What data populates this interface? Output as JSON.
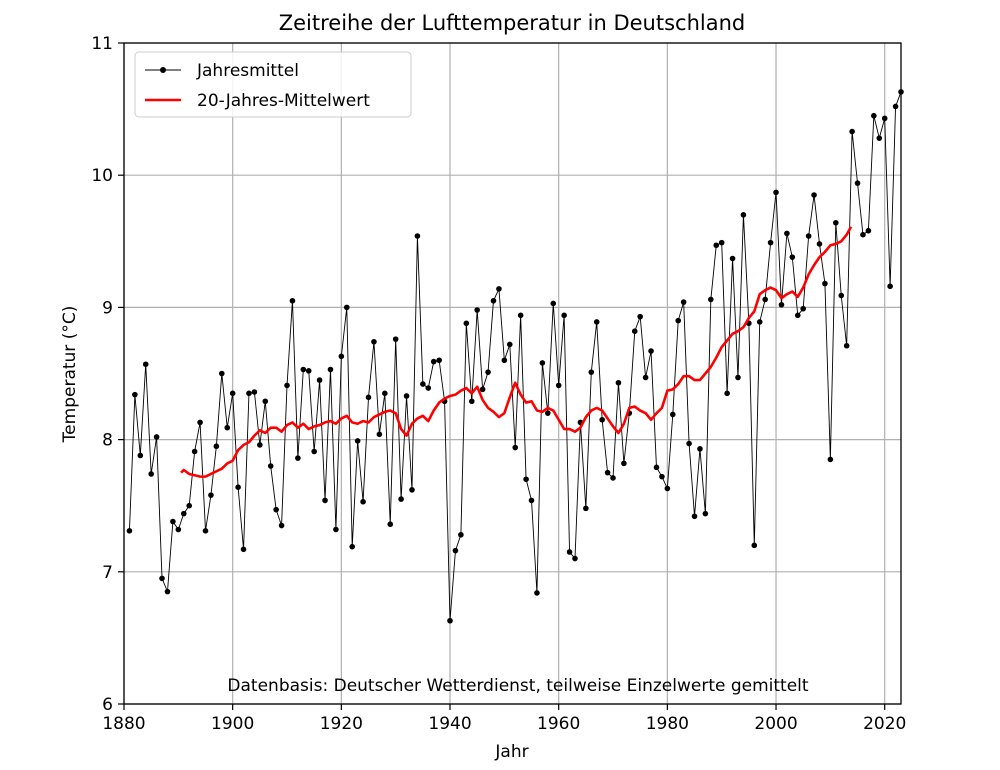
{
  "chart_data": {
    "type": "line",
    "title": "Zeitreihe der Lufttemperatur in Deutschland",
    "xlabel": "Jahr",
    "ylabel": "Temperatur (°C)",
    "xlim": [
      1880,
      2023
    ],
    "ylim": [
      6,
      11
    ],
    "xticks": [
      1880,
      1900,
      1920,
      1940,
      1960,
      1980,
      2000,
      2020
    ],
    "yticks": [
      6,
      7,
      8,
      9,
      10,
      11
    ],
    "grid": true,
    "legend_position": "top-left",
    "annotation": "Datenbasis: Deutscher Wetterdienst, teilweise Einzelwerte gemittelt",
    "series": [
      {
        "name": "Jahresmittel",
        "color": "#000000",
        "marker": "dot",
        "x": [
          1881,
          1882,
          1883,
          1884,
          1885,
          1886,
          1887,
          1888,
          1889,
          1890,
          1891,
          1892,
          1893,
          1894,
          1895,
          1896,
          1897,
          1898,
          1899,
          1900,
          1901,
          1902,
          1903,
          1904,
          1905,
          1906,
          1907,
          1908,
          1909,
          1910,
          1911,
          1912,
          1913,
          1914,
          1915,
          1916,
          1917,
          1918,
          1919,
          1920,
          1921,
          1922,
          1923,
          1924,
          1925,
          1926,
          1927,
          1928,
          1929,
          1930,
          1931,
          1932,
          1933,
          1934,
          1935,
          1936,
          1937,
          1938,
          1939,
          1940,
          1941,
          1942,
          1943,
          1944,
          1945,
          1946,
          1947,
          1948,
          1949,
          1950,
          1951,
          1952,
          1953,
          1954,
          1955,
          1956,
          1957,
          1958,
          1959,
          1960,
          1961,
          1962,
          1963,
          1964,
          1965,
          1966,
          1967,
          1968,
          1969,
          1970,
          1971,
          1972,
          1973,
          1974,
          1975,
          1976,
          1977,
          1978,
          1979,
          1980,
          1981,
          1982,
          1983,
          1984,
          1985,
          1986,
          1987,
          1988,
          1989,
          1990,
          1991,
          1992,
          1993,
          1994,
          1995,
          1996,
          1997,
          1998,
          1999,
          2000,
          2001,
          2002,
          2003,
          2004,
          2005,
          2006,
          2007,
          2008,
          2009,
          2010,
          2011,
          2012,
          2013,
          2014,
          2015,
          2016,
          2017,
          2018,
          2019,
          2020,
          2021,
          2022,
          2023
        ],
        "values": [
          7.31,
          8.34,
          7.88,
          8.57,
          7.74,
          8.02,
          6.95,
          6.85,
          7.38,
          7.32,
          7.44,
          7.5,
          7.91,
          8.13,
          7.31,
          7.58,
          7.95,
          8.5,
          8.09,
          8.35,
          7.64,
          7.17,
          8.35,
          8.36,
          7.96,
          8.29,
          7.8,
          7.47,
          7.35,
          8.41,
          9.05,
          7.86,
          8.53,
          8.52,
          7.91,
          8.45,
          7.54,
          8.53,
          7.32,
          8.63,
          9.0,
          7.19,
          7.99,
          7.53,
          8.32,
          8.74,
          8.04,
          8.35,
          7.36,
          8.76,
          7.55,
          8.33,
          7.62,
          9.54,
          8.42,
          8.39,
          8.59,
          8.6,
          8.29,
          6.63,
          7.16,
          7.28,
          8.88,
          8.29,
          8.98,
          8.38,
          8.51,
          9.05,
          9.14,
          8.6,
          8.72,
          7.94,
          8.94,
          7.7,
          7.54,
          6.84,
          8.58,
          8.2,
          9.03,
          8.41,
          8.94,
          7.15,
          7.1,
          8.13,
          7.48,
          8.51,
          8.89,
          8.15,
          7.75,
          7.71,
          8.43,
          7.82,
          8.2,
          8.82,
          8.93,
          8.47,
          8.67,
          7.79,
          7.72,
          7.63,
          8.19,
          8.9,
          9.04,
          7.97,
          7.42,
          7.93,
          7.44,
          9.06,
          9.47,
          9.49,
          8.35,
          9.37,
          8.47,
          9.7,
          8.88,
          7.2,
          8.89,
          9.06,
          9.49,
          9.87,
          9.02,
          9.56,
          9.38,
          8.94,
          8.99,
          9.54,
          9.85,
          9.48,
          9.18,
          7.85,
          9.64,
          9.09,
          8.71,
          10.33,
          9.94,
          9.55,
          9.58,
          10.45,
          10.28,
          10.43,
          9.16,
          10.52,
          10.63
        ]
      },
      {
        "name": "20-Jahres-Mittelwert",
        "color": "#ff0000",
        "points": [
          [
            1890.5,
            7.75
          ],
          [
            1891,
            7.77
          ],
          [
            1892,
            7.74
          ],
          [
            1893,
            7.73
          ],
          [
            1894,
            7.72
          ],
          [
            1895,
            7.72
          ],
          [
            1896,
            7.74
          ],
          [
            1897,
            7.76
          ],
          [
            1898,
            7.78
          ],
          [
            1899,
            7.82
          ],
          [
            1900,
            7.84
          ],
          [
            1901,
            7.92
          ],
          [
            1902,
            7.96
          ],
          [
            1903,
            7.98
          ],
          [
            1904,
            8.03
          ],
          [
            1905,
            8.07
          ],
          [
            1906,
            8.05
          ],
          [
            1907,
            8.09
          ],
          [
            1908,
            8.09
          ],
          [
            1909,
            8.06
          ],
          [
            1910,
            8.11
          ],
          [
            1911,
            8.13
          ],
          [
            1912,
            8.09
          ],
          [
            1913,
            8.12
          ],
          [
            1914,
            8.08
          ],
          [
            1915,
            8.1
          ],
          [
            1916,
            8.11
          ],
          [
            1917,
            8.13
          ],
          [
            1918,
            8.14
          ],
          [
            1919,
            8.12
          ],
          [
            1920,
            8.16
          ],
          [
            1921,
            8.18
          ],
          [
            1922,
            8.13
          ],
          [
            1923,
            8.12
          ],
          [
            1924,
            8.14
          ],
          [
            1925,
            8.13
          ],
          [
            1926,
            8.17
          ],
          [
            1927,
            8.19
          ],
          [
            1928,
            8.21
          ],
          [
            1929,
            8.22
          ],
          [
            1930,
            8.2
          ],
          [
            1931,
            8.08
          ],
          [
            1932,
            8.03
          ],
          [
            1933,
            8.12
          ],
          [
            1934,
            8.16
          ],
          [
            1935,
            8.18
          ],
          [
            1936,
            8.14
          ],
          [
            1937,
            8.22
          ],
          [
            1938,
            8.28
          ],
          [
            1939,
            8.31
          ],
          [
            1940,
            8.33
          ],
          [
            1941,
            8.34
          ],
          [
            1942,
            8.37
          ],
          [
            1943,
            8.39
          ],
          [
            1944,
            8.35
          ],
          [
            1945,
            8.4
          ],
          [
            1946,
            8.3
          ],
          [
            1947,
            8.24
          ],
          [
            1948,
            8.21
          ],
          [
            1949,
            8.17
          ],
          [
            1950,
            8.2
          ],
          [
            1951,
            8.32
          ],
          [
            1952,
            8.43
          ],
          [
            1953,
            8.34
          ],
          [
            1954,
            8.28
          ],
          [
            1955,
            8.29
          ],
          [
            1956,
            8.22
          ],
          [
            1957,
            8.21
          ],
          [
            1958,
            8.24
          ],
          [
            1959,
            8.22
          ],
          [
            1960,
            8.15
          ],
          [
            1961,
            8.08
          ],
          [
            1962,
            8.08
          ],
          [
            1963,
            8.06
          ],
          [
            1964,
            8.09
          ],
          [
            1965,
            8.17
          ],
          [
            1966,
            8.22
          ],
          [
            1967,
            8.24
          ],
          [
            1968,
            8.22
          ],
          [
            1969,
            8.16
          ],
          [
            1970,
            8.1
          ],
          [
            1971,
            8.05
          ],
          [
            1972,
            8.12
          ],
          [
            1973,
            8.24
          ],
          [
            1974,
            8.25
          ],
          [
            1975,
            8.22
          ],
          [
            1976,
            8.2
          ],
          [
            1977,
            8.15
          ],
          [
            1978,
            8.2
          ],
          [
            1979,
            8.24
          ],
          [
            1980,
            8.37
          ],
          [
            1981,
            8.38
          ],
          [
            1982,
            8.42
          ],
          [
            1983,
            8.48
          ],
          [
            1984,
            8.48
          ],
          [
            1985,
            8.45
          ],
          [
            1986,
            8.45
          ],
          [
            1987,
            8.5
          ],
          [
            1988,
            8.55
          ],
          [
            1989,
            8.62
          ],
          [
            1990,
            8.7
          ],
          [
            1991,
            8.75
          ],
          [
            1992,
            8.8
          ],
          [
            1993,
            8.82
          ],
          [
            1994,
            8.85
          ],
          [
            1995,
            8.92
          ],
          [
            1996,
            8.97
          ],
          [
            1997,
            9.1
          ],
          [
            1998,
            9.13
          ],
          [
            1999,
            9.15
          ],
          [
            2000,
            9.13
          ],
          [
            2001,
            9.07
          ],
          [
            2002,
            9.1
          ],
          [
            2003,
            9.12
          ],
          [
            2004,
            9.08
          ],
          [
            2005,
            9.15
          ],
          [
            2006,
            9.25
          ],
          [
            2007,
            9.32
          ],
          [
            2008,
            9.38
          ],
          [
            2009,
            9.42
          ],
          [
            2010,
            9.47
          ],
          [
            2011,
            9.48
          ],
          [
            2012,
            9.5
          ],
          [
            2013,
            9.55
          ],
          [
            2013.8,
            9.61
          ]
        ]
      }
    ]
  }
}
